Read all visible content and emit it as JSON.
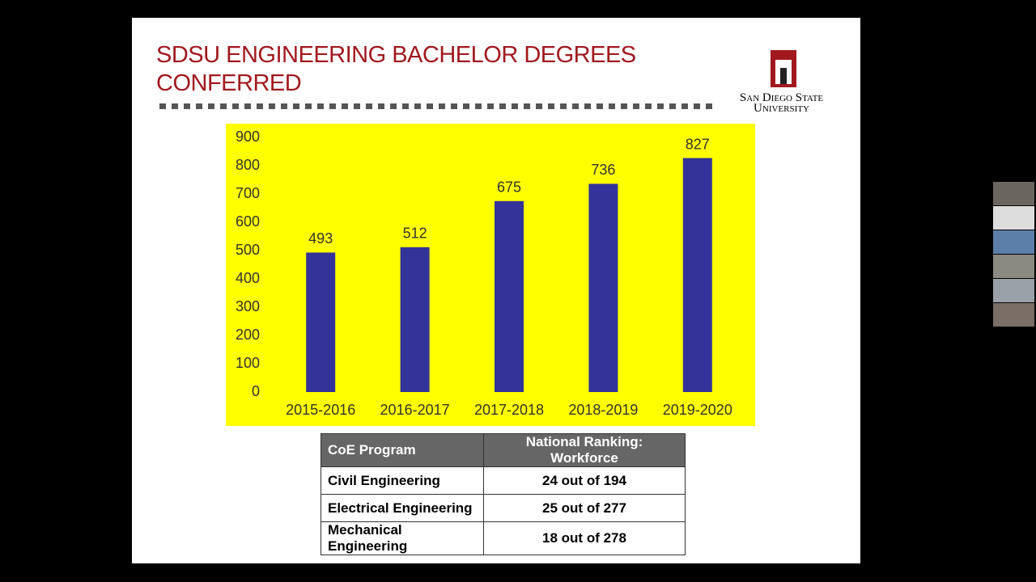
{
  "slide": {
    "title": [
      "SDSU ENGINEERING BACHELOR DEGREES",
      "CONFERRED"
    ],
    "logo_text": [
      "San Diego State",
      "University"
    ]
  },
  "chart_data": {
    "type": "bar",
    "categories": [
      "2015-2016",
      "2016-2017",
      "2017-2018",
      "2018-2019",
      "2019-2020"
    ],
    "values": [
      493,
      512,
      675,
      736,
      827
    ],
    "color": "#333399",
    "background": "#ffff00",
    "ylim": [
      0,
      900
    ],
    "yticks": [
      0,
      100,
      200,
      300,
      400,
      500,
      600,
      700,
      800,
      900
    ],
    "grid": false
  },
  "table": {
    "header": [
      "CoE Program",
      "National Ranking: Workforce"
    ],
    "rows": [
      [
        "Civil Engineering",
        "24 out of 194"
      ],
      [
        "Electrical Engineering",
        "25 out of 277"
      ],
      [
        "Mechanical Engineering",
        "18 out of 278"
      ]
    ]
  }
}
